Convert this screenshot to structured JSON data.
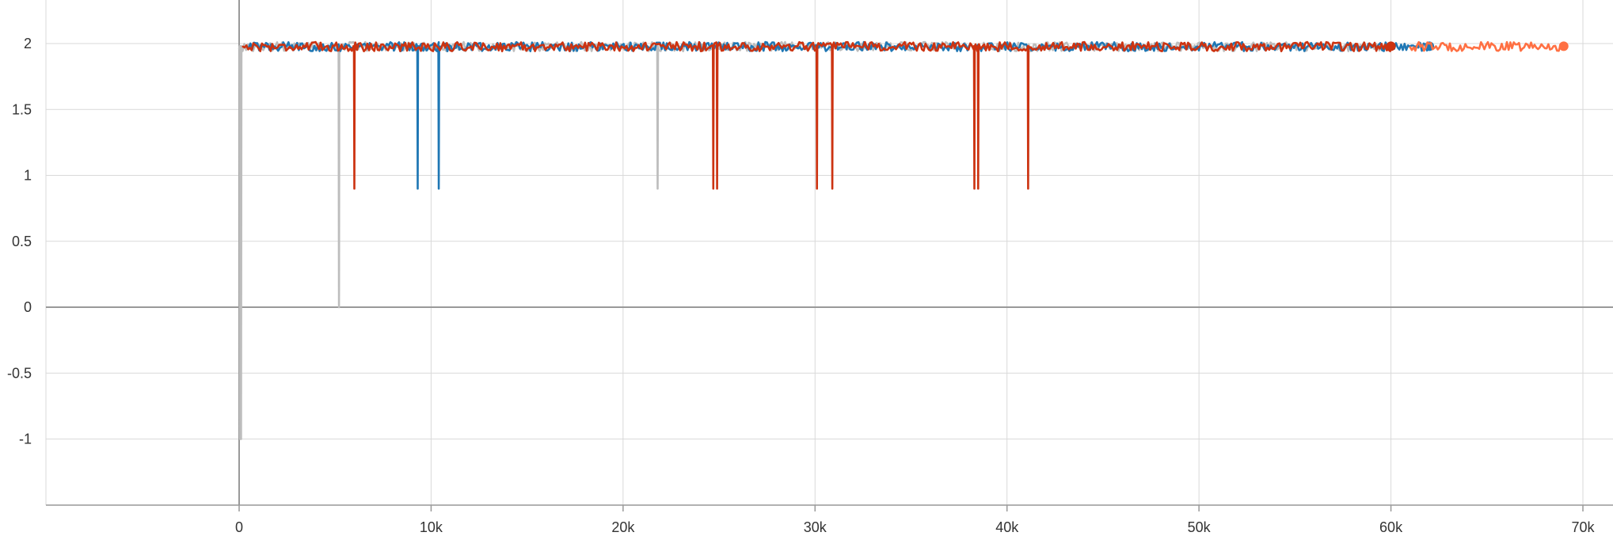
{
  "chart_data": {
    "type": "line",
    "title": "",
    "xlabel": "",
    "ylabel": "",
    "xlim": [
      -10000,
      71000
    ],
    "ylim": [
      -1.5,
      2.3
    ],
    "grid": true,
    "legend": "none",
    "x_ticks": [
      0,
      10000,
      20000,
      30000,
      40000,
      50000,
      60000,
      70000
    ],
    "x_tick_labels": [
      "0",
      "10k",
      "20k",
      "30k",
      "40k",
      "50k",
      "60k",
      "70k"
    ],
    "y_ticks": [
      -1,
      -0.5,
      0,
      0.5,
      1,
      1.5,
      2
    ],
    "y_tick_labels": [
      "-1",
      "-0.5",
      "0",
      "0.5",
      "1",
      "1.5",
      "2"
    ],
    "series": [
      {
        "color": "#bdbdbd",
        "x_start": 0,
        "x_end": 60000,
        "baseline": 1.98,
        "dips": [
          [
            50,
            -1.0
          ],
          [
            100,
            -1.0
          ],
          [
            5200,
            0.0
          ],
          [
            21800,
            0.9
          ]
        ],
        "end_marker": false
      },
      {
        "color": "#1f77b4",
        "x_start": 500,
        "x_end": 62000,
        "baseline": 1.98,
        "dips": [
          [
            9300,
            0.9
          ],
          [
            10400,
            0.9
          ]
        ],
        "end_marker": true
      },
      {
        "color": "#ff7043",
        "x_start": 61000,
        "x_end": 69000,
        "baseline": 1.98,
        "dips": [],
        "end_marker": true
      },
      {
        "color": "#cc3311",
        "x_start": 200,
        "x_end": 60000,
        "baseline": 1.98,
        "dips": [
          [
            6000,
            0.9
          ],
          [
            24700,
            0.9
          ],
          [
            24900,
            0.9
          ],
          [
            30100,
            0.9
          ],
          [
            30900,
            0.9
          ],
          [
            38300,
            0.9
          ],
          [
            38500,
            0.9
          ],
          [
            41100,
            0.9
          ]
        ],
        "end_marker": true
      }
    ]
  }
}
